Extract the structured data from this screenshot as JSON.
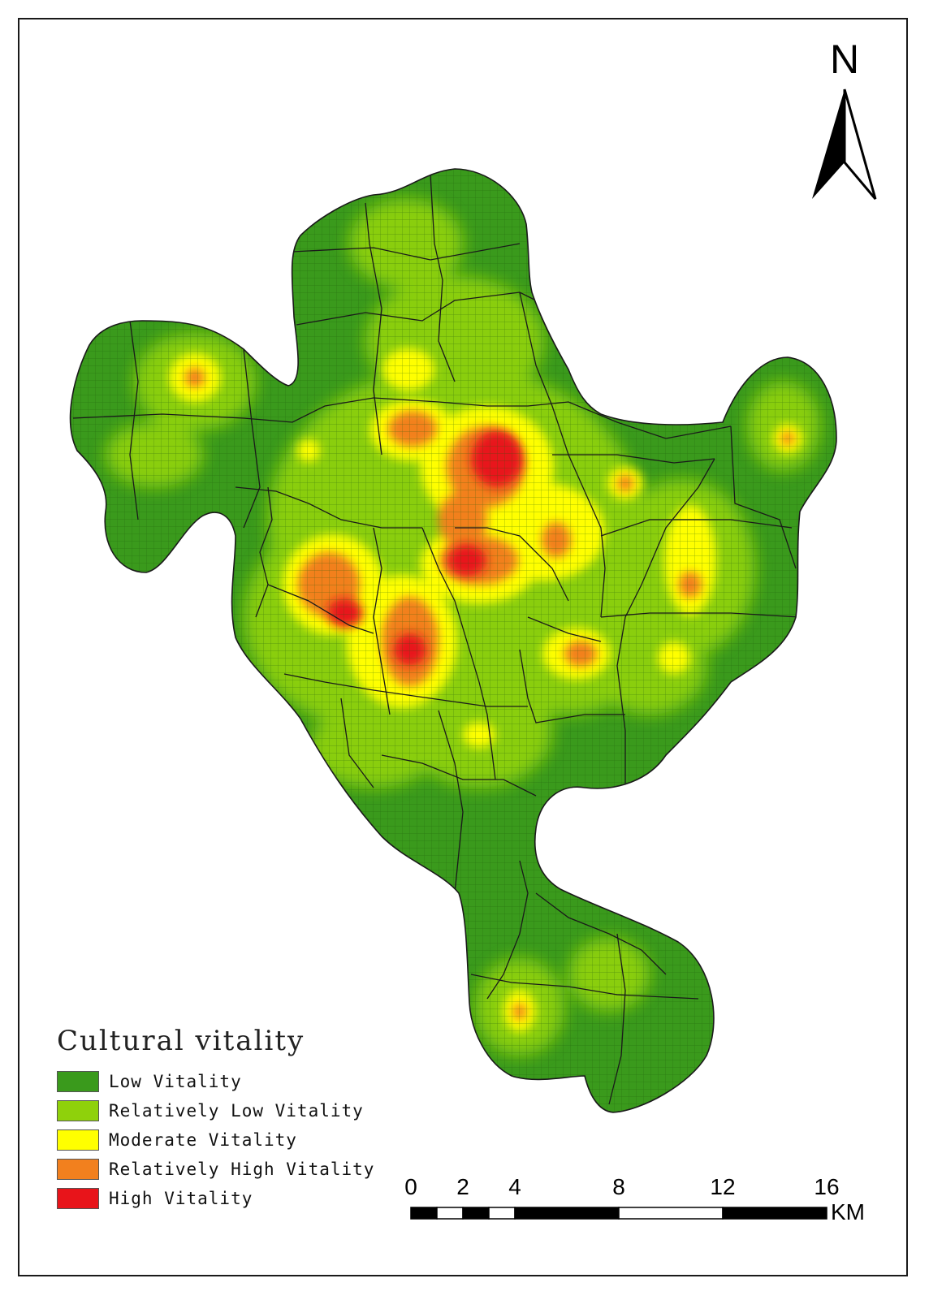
{
  "north_arrow": {
    "label": "N",
    "icon": "north-arrow-icon"
  },
  "legend": {
    "title": "Cultural vitality",
    "items": [
      {
        "label": "Low Vitality",
        "color": "#3a9a1c"
      },
      {
        "label": "Relatively Low Vitality",
        "color": "#8fd10b"
      },
      {
        "label": "Moderate Vitality",
        "color": "#ffff00"
      },
      {
        "label": "Relatively High Vitality",
        "color": "#f2801e"
      },
      {
        "label": "High Vitality",
        "color": "#e8141a"
      }
    ]
  },
  "scale_bar": {
    "ticks": [
      "0",
      "2",
      "4",
      "8",
      "12",
      "16"
    ],
    "unit": "KM"
  }
}
